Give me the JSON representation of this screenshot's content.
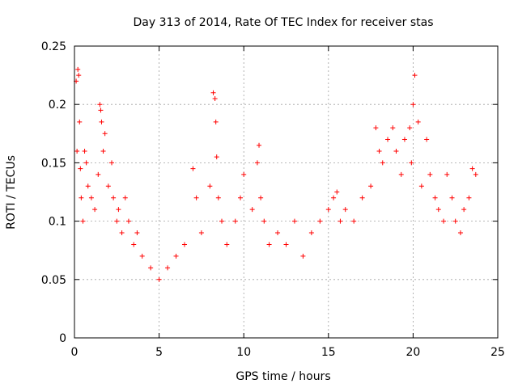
{
  "chart_data": {
    "type": "scatter",
    "title": "Day 313 of 2014, Rate Of TEC Index for receiver stas",
    "xlabel": "GPS time / hours",
    "ylabel": "ROTI / TECUs",
    "xlim": [
      0,
      25
    ],
    "ylim": [
      0,
      0.25
    ],
    "xticks": [
      0,
      5,
      10,
      15,
      20,
      25
    ],
    "yticks": [
      0,
      0.05,
      0.1,
      0.15,
      0.2,
      0.25
    ],
    "xtick_labels": [
      "0",
      "5",
      "10",
      "15",
      "20",
      "25"
    ],
    "ytick_labels": [
      "0",
      "0.05",
      "0.1",
      "0.15",
      "0.2",
      "0.25"
    ],
    "grid": true,
    "marker": "plus",
    "color": "#ff0000",
    "series": [
      {
        "name": "stas",
        "x": [
          0.1,
          0.2,
          0.25,
          0.3,
          0.15,
          0.35,
          0.4,
          0.5,
          0.6,
          0.7,
          0.8,
          1.0,
          1.2,
          1.4,
          1.5,
          1.55,
          1.6,
          1.7,
          1.8,
          2.0,
          2.2,
          2.3,
          2.5,
          2.6,
          2.8,
          3.0,
          3.2,
          3.5,
          3.7,
          4.0,
          4.5,
          5.0,
          5.5,
          6.0,
          6.5,
          7.0,
          7.2,
          7.5,
          8.0,
          8.2,
          8.3,
          8.35,
          8.4,
          8.5,
          8.7,
          9.0,
          9.5,
          9.8,
          10.0,
          10.5,
          10.8,
          10.9,
          11.0,
          11.2,
          11.5,
          12.0,
          12.5,
          13.0,
          13.5,
          14.0,
          14.5,
          15.0,
          15.3,
          15.5,
          15.7,
          16.0,
          16.5,
          17.0,
          17.5,
          17.8,
          18.0,
          18.2,
          18.5,
          18.8,
          19.0,
          19.3,
          19.5,
          19.8,
          19.9,
          20.0,
          20.1,
          20.3,
          20.5,
          20.8,
          21.0,
          21.3,
          21.5,
          21.8,
          22.0,
          22.3,
          22.5,
          22.8,
          23.0,
          23.3,
          23.5,
          23.7
        ],
        "y": [
          0.22,
          0.23,
          0.225,
          0.185,
          0.16,
          0.145,
          0.12,
          0.1,
          0.16,
          0.15,
          0.13,
          0.12,
          0.11,
          0.14,
          0.2,
          0.195,
          0.185,
          0.16,
          0.175,
          0.13,
          0.15,
          0.12,
          0.1,
          0.11,
          0.09,
          0.12,
          0.1,
          0.08,
          0.09,
          0.07,
          0.06,
          0.05,
          0.06,
          0.07,
          0.08,
          0.145,
          0.12,
          0.09,
          0.13,
          0.21,
          0.205,
          0.185,
          0.155,
          0.12,
          0.1,
          0.08,
          0.1,
          0.12,
          0.14,
          0.11,
          0.15,
          0.165,
          0.12,
          0.1,
          0.08,
          0.09,
          0.08,
          0.1,
          0.07,
          0.09,
          0.1,
          0.11,
          0.12,
          0.125,
          0.1,
          0.11,
          0.1,
          0.12,
          0.13,
          0.18,
          0.16,
          0.15,
          0.17,
          0.18,
          0.16,
          0.14,
          0.17,
          0.18,
          0.15,
          0.2,
          0.225,
          0.185,
          0.13,
          0.17,
          0.14,
          0.12,
          0.11,
          0.1,
          0.14,
          0.12,
          0.1,
          0.09,
          0.11,
          0.12,
          0.145,
          0.14
        ]
      }
    ]
  }
}
